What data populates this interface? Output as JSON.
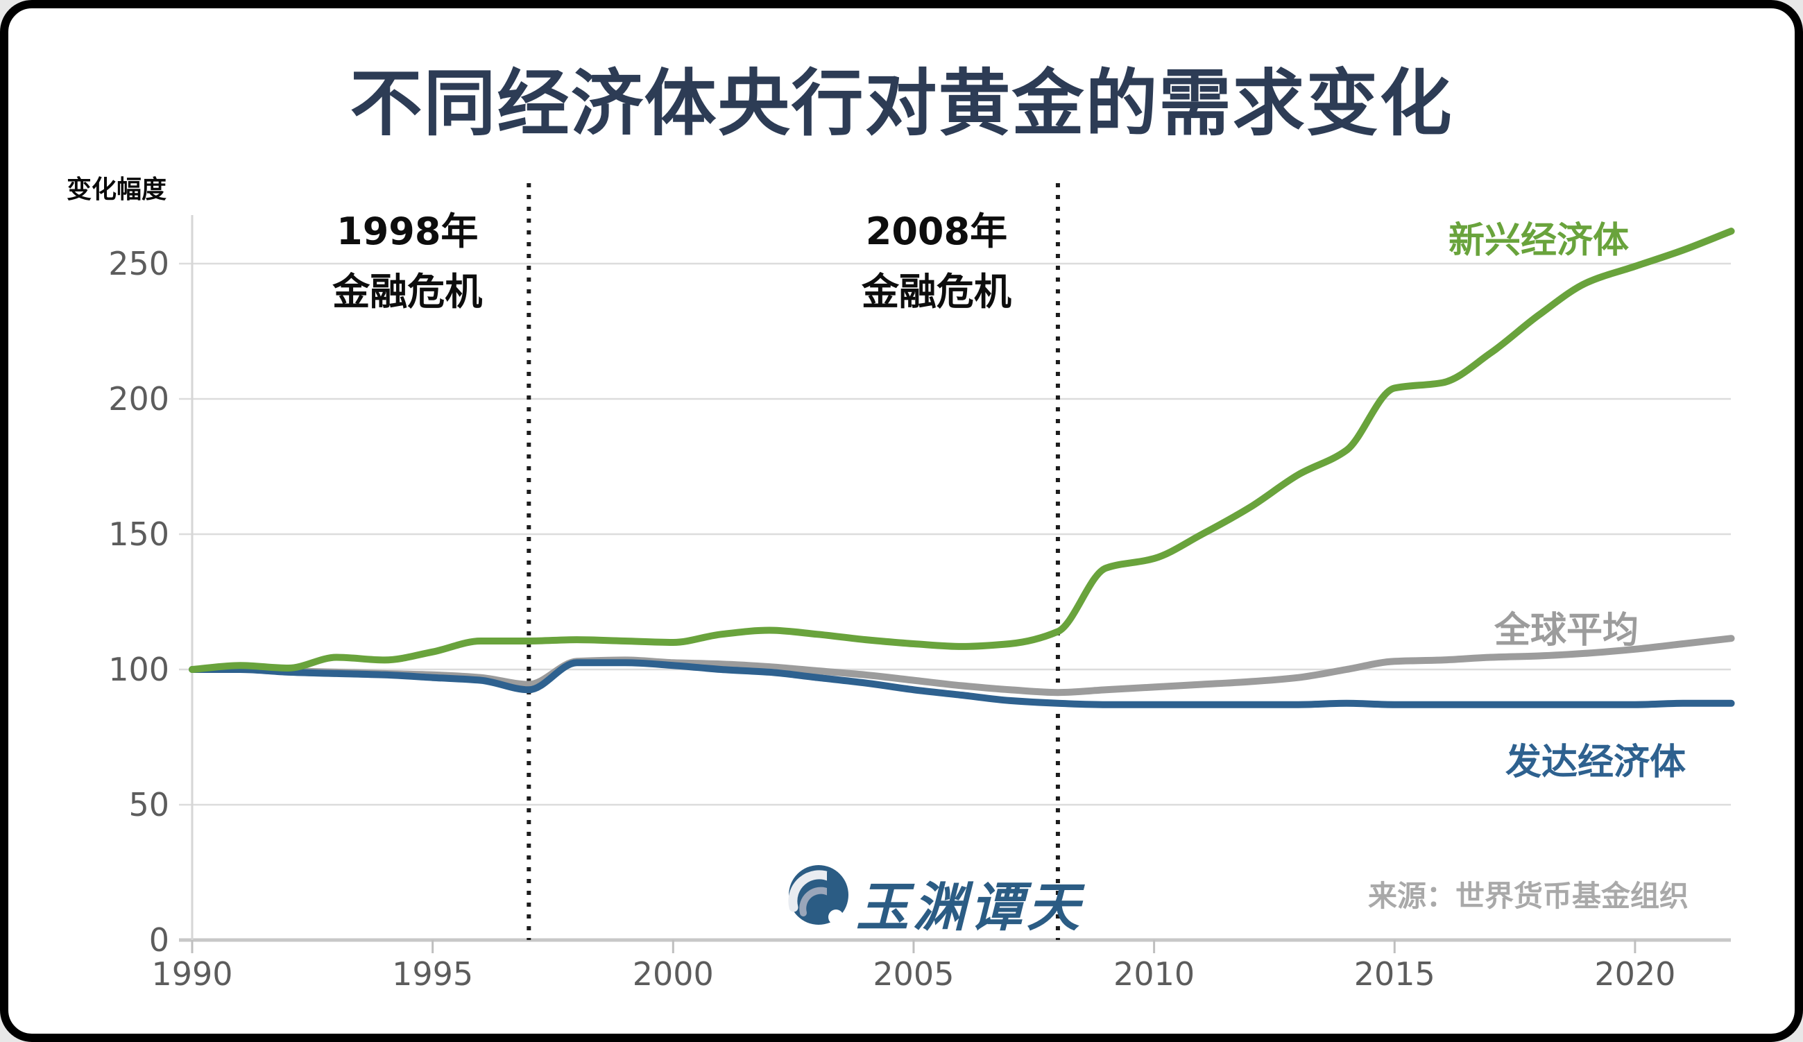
{
  "title": "不同经济体央行对黄金的需求变化",
  "source_note": "来源：世界货币基金组织",
  "logo_text": "玉渊谭天",
  "chart_data": {
    "type": "line",
    "title": "不同经济体央行对黄金的需求变化",
    "xlabel": "",
    "ylabel": "变化幅度",
    "xlim": [
      1990,
      2022.6
    ],
    "ylim": [
      0,
      267
    ],
    "grid": true,
    "legend_position": "inline-right",
    "yticks": [
      0,
      50,
      100,
      150,
      200,
      250
    ],
    "xticks": [
      1990,
      1995,
      2000,
      2005,
      2010,
      2015,
      2020
    ],
    "x": [
      1990,
      1991,
      1992,
      1993,
      1994,
      1995,
      1996,
      1997,
      1998,
      1999,
      2000,
      2001,
      2002,
      2003,
      2004,
      2005,
      2006,
      2007,
      2008,
      2009,
      2010,
      2011,
      2012,
      2013,
      2014,
      2015,
      2016,
      2017,
      2018,
      2019,
      2020,
      2021,
      2022
    ],
    "series": [
      {
        "name": "新兴经济体",
        "color": "#69a33c",
        "values": [
          100,
          101.5,
          100.5,
          104.5,
          103.5,
          106.5,
          110.5,
          110.5,
          111,
          110.5,
          110,
          113,
          114.5,
          113,
          111,
          109.5,
          108.5,
          109.5,
          114,
          137.5,
          141,
          150,
          160,
          172,
          181,
          204,
          206,
          217,
          231,
          243,
          249,
          255,
          262
        ]
      },
      {
        "name": "全球平均",
        "color": "#9c9c9c",
        "values": [
          100,
          100,
          99.5,
          99,
          98.5,
          98,
          97,
          94.5,
          103,
          103.5,
          102.5,
          102,
          101,
          99.5,
          98,
          96,
          94,
          92.5,
          91.5,
          92.5,
          93.5,
          94.5,
          95.5,
          97,
          100,
          103,
          103.5,
          104.5,
          105,
          106,
          107.5,
          109.5,
          111.5
        ]
      },
      {
        "name": "发达经济体",
        "color": "#2e618f",
        "values": [
          100,
          100,
          99,
          98.5,
          98,
          97,
          96,
          92.5,
          102.5,
          102.5,
          101.5,
          100,
          99,
          97,
          95,
          92.5,
          90.5,
          88.5,
          87.5,
          87,
          87,
          87,
          87,
          87,
          87.5,
          87,
          87,
          87,
          87,
          87,
          87,
          87.5,
          87.5
        ]
      }
    ],
    "annotations": [
      {
        "year": 1997,
        "line1": "1998年",
        "line2": "金融危机"
      },
      {
        "year": 2008,
        "line1": "2008年",
        "line2": "金融危机"
      }
    ]
  }
}
